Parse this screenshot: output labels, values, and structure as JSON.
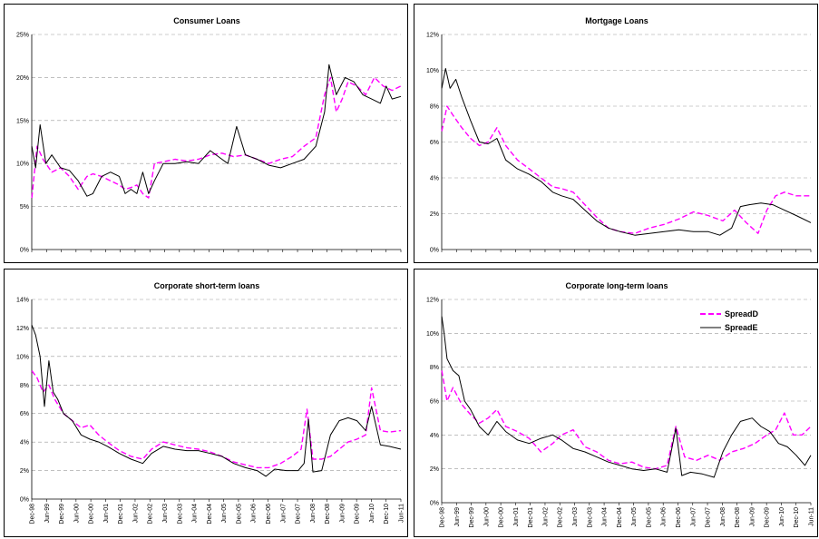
{
  "chart_data": [
    {
      "type": "line",
      "title": "Consumer Loans",
      "ylim": [
        0,
        0.25
      ],
      "yticks": [
        0,
        0.05,
        0.1,
        0.15,
        0.2,
        0.25
      ],
      "ytick_labels": [
        "0%",
        "5%",
        "10%",
        "15%",
        "20%",
        "25%"
      ],
      "x_range": [
        1998.917,
        2011.5
      ],
      "x_labels_visible": false,
      "grid": true,
      "series": [
        {
          "name": "SpreadD",
          "color": "#ff00ff",
          "dash": true,
          "x": [
            1998.92,
            1999.1,
            1999.3,
            1999.6,
            1999.9,
            2000.2,
            2000.5,
            2000.8,
            2001.0,
            2001.3,
            2001.6,
            2001.9,
            2002.1,
            2002.3,
            2002.5,
            2002.7,
            2002.9,
            2003.1,
            2003.4,
            2003.8,
            2004.2,
            2004.6,
            2005.0,
            2005.4,
            2005.8,
            2006.2,
            2006.6,
            2007.0,
            2007.4,
            2007.8,
            2008.2,
            2008.6,
            2008.9,
            2009.1,
            2009.3,
            2009.5,
            2009.7,
            2010.0,
            2010.3,
            2010.6,
            2010.9,
            2011.2,
            2011.5
          ],
          "y": [
            0.06,
            0.12,
            0.105,
            0.09,
            0.095,
            0.085,
            0.07,
            0.085,
            0.088,
            0.085,
            0.08,
            0.075,
            0.07,
            0.072,
            0.075,
            0.065,
            0.06,
            0.1,
            0.102,
            0.105,
            0.103,
            0.105,
            0.11,
            0.112,
            0.108,
            0.11,
            0.105,
            0.1,
            0.105,
            0.108,
            0.12,
            0.13,
            0.18,
            0.2,
            0.16,
            0.175,
            0.195,
            0.19,
            0.18,
            0.2,
            0.19,
            0.185,
            0.19
          ]
        },
        {
          "name": "SpreadE",
          "color": "#000000",
          "dash": false,
          "x": [
            1998.92,
            1999.05,
            1999.2,
            1999.4,
            1999.6,
            1999.9,
            2000.2,
            2000.5,
            2000.8,
            2001.0,
            2001.3,
            2001.6,
            2001.9,
            2002.1,
            2002.3,
            2002.5,
            2002.7,
            2002.9,
            2003.1,
            2003.4,
            2003.8,
            2004.2,
            2004.6,
            2005.0,
            2005.4,
            2005.6,
            2005.9,
            2006.2,
            2006.6,
            2007.0,
            2007.4,
            2007.8,
            2008.2,
            2008.6,
            2008.9,
            2009.05,
            2009.3,
            2009.6,
            2009.9,
            2010.2,
            2010.5,
            2010.8,
            2011.0,
            2011.2,
            2011.5
          ],
          "y": [
            0.12,
            0.095,
            0.145,
            0.1,
            0.11,
            0.095,
            0.092,
            0.08,
            0.062,
            0.065,
            0.085,
            0.09,
            0.085,
            0.065,
            0.07,
            0.065,
            0.09,
            0.065,
            0.08,
            0.1,
            0.1,
            0.102,
            0.1,
            0.115,
            0.105,
            0.1,
            0.143,
            0.11,
            0.105,
            0.098,
            0.095,
            0.1,
            0.105,
            0.12,
            0.16,
            0.215,
            0.18,
            0.2,
            0.195,
            0.18,
            0.175,
            0.17,
            0.19,
            0.175,
            0.178
          ]
        }
      ]
    },
    {
      "type": "line",
      "title": "Mortgage Loans",
      "ylim": [
        0,
        0.12
      ],
      "yticks": [
        0,
        0.02,
        0.04,
        0.06,
        0.08,
        0.1,
        0.12
      ],
      "ytick_labels": [
        "0%",
        "2%",
        "4%",
        "6%",
        "8%",
        "10%",
        "12%"
      ],
      "x_range": [
        1998.917,
        2011.5
      ],
      "x_labels_visible": false,
      "grid": true,
      "series": [
        {
          "name": "SpreadD",
          "color": "#ff00ff",
          "dash": true,
          "x": [
            1998.92,
            1999.1,
            1999.3,
            1999.6,
            1999.9,
            2000.2,
            2000.5,
            2000.8,
            2001.1,
            2001.5,
            2001.9,
            2002.3,
            2002.7,
            2003.0,
            2003.4,
            2003.8,
            2004.2,
            2004.6,
            2005.0,
            2005.5,
            2006.0,
            2006.5,
            2007.0,
            2007.5,
            2008.0,
            2008.5,
            2008.9,
            2009.3,
            2009.7,
            2010.0,
            2010.3,
            2010.6,
            2011.0,
            2011.5
          ],
          "y": [
            0.066,
            0.08,
            0.075,
            0.068,
            0.062,
            0.058,
            0.06,
            0.068,
            0.058,
            0.05,
            0.045,
            0.04,
            0.035,
            0.034,
            0.032,
            0.025,
            0.018,
            0.012,
            0.01,
            0.009,
            0.012,
            0.014,
            0.017,
            0.021,
            0.019,
            0.016,
            0.022,
            0.015,
            0.009,
            0.022,
            0.03,
            0.032,
            0.03,
            0.03
          ]
        },
        {
          "name": "SpreadE",
          "color": "#000000",
          "dash": false,
          "x": [
            1998.92,
            1999.05,
            1999.2,
            1999.4,
            1999.6,
            1999.9,
            2000.2,
            2000.5,
            2000.8,
            2001.1,
            2001.5,
            2001.9,
            2002.3,
            2002.7,
            2003.0,
            2003.4,
            2003.8,
            2004.2,
            2004.6,
            2005.0,
            2005.5,
            2006.0,
            2006.5,
            2007.0,
            2007.5,
            2008.0,
            2008.4,
            2008.8,
            2009.1,
            2009.4,
            2009.8,
            2010.2,
            2010.6,
            2011.0,
            2011.5
          ],
          "y": [
            0.09,
            0.101,
            0.09,
            0.095,
            0.085,
            0.072,
            0.06,
            0.059,
            0.062,
            0.05,
            0.045,
            0.042,
            0.038,
            0.032,
            0.03,
            0.028,
            0.022,
            0.016,
            0.012,
            0.01,
            0.008,
            0.009,
            0.01,
            0.011,
            0.01,
            0.01,
            0.008,
            0.012,
            0.024,
            0.025,
            0.026,
            0.025,
            0.022,
            0.019,
            0.015
          ]
        }
      ]
    },
    {
      "type": "line",
      "title": "Corporate short-term loans",
      "ylim": [
        0,
        0.14
      ],
      "yticks": [
        0,
        0.02,
        0.04,
        0.06,
        0.08,
        0.1,
        0.12,
        0.14
      ],
      "ytick_labels": [
        "0%",
        "2%",
        "4%",
        "6%",
        "8%",
        "10%",
        "12%",
        "14%"
      ],
      "x_range": [
        1998.917,
        2011.5
      ],
      "xticks": [
        "Dec-98",
        "Jun-99",
        "Dec-99",
        "Jun-00",
        "Dec-00",
        "Jun-01",
        "Dec-01",
        "Jun-02",
        "Dec-02",
        "Jun-03",
        "Dec-03",
        "Jun-04",
        "Dec-04",
        "Jun-05",
        "Dec-05",
        "Jun-06",
        "Dec-06",
        "Jun-07",
        "Dec-07",
        "Jun-08",
        "Dec-08",
        "Jun-09",
        "Dec-09",
        "Jun-10",
        "Dec-10",
        "Jun-11"
      ],
      "grid": true,
      "series": [
        {
          "name": "SpreadD",
          "color": "#ff00ff",
          "dash": true,
          "x": [
            1998.92,
            1999.1,
            1999.3,
            1999.5,
            1999.7,
            2000.0,
            2000.3,
            2000.6,
            2000.9,
            2001.2,
            2001.5,
            2001.9,
            2002.3,
            2002.7,
            2003.0,
            2003.4,
            2003.8,
            2004.2,
            2004.6,
            2005.0,
            2005.4,
            2005.8,
            2006.2,
            2006.6,
            2007.0,
            2007.4,
            2007.8,
            2008.1,
            2008.3,
            2008.5,
            2008.8,
            2009.1,
            2009.4,
            2009.7,
            2010.0,
            2010.3,
            2010.5,
            2010.8,
            2011.1,
            2011.5
          ],
          "y": [
            0.09,
            0.085,
            0.075,
            0.08,
            0.07,
            0.06,
            0.055,
            0.05,
            0.052,
            0.045,
            0.04,
            0.034,
            0.03,
            0.028,
            0.035,
            0.04,
            0.038,
            0.036,
            0.035,
            0.033,
            0.03,
            0.026,
            0.024,
            0.022,
            0.022,
            0.025,
            0.03,
            0.035,
            0.063,
            0.028,
            0.028,
            0.03,
            0.035,
            0.04,
            0.042,
            0.045,
            0.078,
            0.048,
            0.047,
            0.048
          ]
        },
        {
          "name": "SpreadE",
          "color": "#000000",
          "dash": false,
          "x": [
            1998.92,
            1999.05,
            1999.2,
            1999.35,
            1999.5,
            1999.65,
            1999.8,
            2000.0,
            2000.3,
            2000.6,
            2000.9,
            2001.2,
            2001.5,
            2001.9,
            2002.3,
            2002.7,
            2003.0,
            2003.4,
            2003.8,
            2004.2,
            2004.6,
            2005.0,
            2005.4,
            2005.8,
            2006.2,
            2006.6,
            2006.9,
            2007.2,
            2007.6,
            2008.0,
            2008.2,
            2008.35,
            2008.5,
            2008.8,
            2009.1,
            2009.4,
            2009.7,
            2010.0,
            2010.3,
            2010.5,
            2010.8,
            2011.1,
            2011.5
          ],
          "y": [
            0.122,
            0.115,
            0.1,
            0.065,
            0.097,
            0.075,
            0.07,
            0.06,
            0.055,
            0.045,
            0.042,
            0.04,
            0.037,
            0.032,
            0.028,
            0.025,
            0.032,
            0.037,
            0.035,
            0.034,
            0.034,
            0.032,
            0.03,
            0.025,
            0.022,
            0.02,
            0.016,
            0.021,
            0.02,
            0.02,
            0.025,
            0.056,
            0.019,
            0.02,
            0.045,
            0.055,
            0.057,
            0.055,
            0.048,
            0.065,
            0.038,
            0.037,
            0.035
          ]
        }
      ]
    },
    {
      "type": "line",
      "title": "Corporate long-term loans",
      "ylim": [
        0,
        0.12
      ],
      "yticks": [
        0,
        0.02,
        0.04,
        0.06,
        0.08,
        0.1,
        0.12
      ],
      "ytick_labels": [
        "0%",
        "2%",
        "4%",
        "6%",
        "8%",
        "10%",
        "12%"
      ],
      "x_range": [
        1998.917,
        2011.5
      ],
      "xticks": [
        "Dec-98",
        "Jun-99",
        "Dec-99",
        "Jun-00",
        "Dec-00",
        "Jun-01",
        "Dec-01",
        "Jun-02",
        "Dec-02",
        "Jun-03",
        "Dec-03",
        "Jun-04",
        "Dec-04",
        "Jun-05",
        "Dec-05",
        "Jun-06",
        "Dec-06",
        "Jun-07",
        "Dec-07",
        "Jun-08",
        "Dec-08",
        "Jun-09",
        "Dec-09",
        "Jun-10",
        "Dec-10",
        "Jun-11"
      ],
      "grid": true,
      "legend": "top-right",
      "series": [
        {
          "name": "SpreadD",
          "color": "#ff00ff",
          "dash": true,
          "x": [
            1998.92,
            1999.1,
            1999.3,
            1999.6,
            1999.9,
            2000.2,
            2000.5,
            2000.8,
            2001.1,
            2001.5,
            2001.9,
            2002.3,
            2002.7,
            2003.0,
            2003.4,
            2003.8,
            2004.2,
            2004.6,
            2005.0,
            2005.4,
            2005.8,
            2006.2,
            2006.6,
            2006.9,
            2007.2,
            2007.6,
            2008.0,
            2008.4,
            2008.8,
            2009.2,
            2009.6,
            2010.0,
            2010.3,
            2010.6,
            2010.9,
            2011.2,
            2011.5
          ],
          "y": [
            0.078,
            0.06,
            0.068,
            0.058,
            0.052,
            0.047,
            0.05,
            0.055,
            0.045,
            0.042,
            0.038,
            0.03,
            0.035,
            0.04,
            0.043,
            0.033,
            0.03,
            0.025,
            0.023,
            0.024,
            0.021,
            0.02,
            0.022,
            0.045,
            0.027,
            0.025,
            0.028,
            0.025,
            0.03,
            0.032,
            0.035,
            0.04,
            0.043,
            0.053,
            0.04,
            0.04,
            0.045
          ]
        },
        {
          "name": "SpreadE",
          "color": "#000000",
          "dash": false,
          "x": [
            1998.92,
            1999.0,
            1999.1,
            1999.3,
            1999.5,
            1999.7,
            1999.9,
            2000.2,
            2000.5,
            2000.8,
            2001.1,
            2001.5,
            2001.9,
            2002.3,
            2002.7,
            2003.0,
            2003.4,
            2003.8,
            2004.2,
            2004.6,
            2005.0,
            2005.4,
            2005.8,
            2006.2,
            2006.6,
            2006.9,
            2007.1,
            2007.4,
            2007.8,
            2008.2,
            2008.5,
            2008.8,
            2009.1,
            2009.5,
            2009.8,
            2010.1,
            2010.4,
            2010.7,
            2011.0,
            2011.3,
            2011.5
          ],
          "y": [
            0.11,
            0.1,
            0.085,
            0.078,
            0.075,
            0.06,
            0.055,
            0.045,
            0.04,
            0.048,
            0.042,
            0.037,
            0.035,
            0.038,
            0.04,
            0.037,
            0.032,
            0.03,
            0.027,
            0.024,
            0.022,
            0.02,
            0.019,
            0.02,
            0.018,
            0.044,
            0.016,
            0.018,
            0.017,
            0.015,
            0.03,
            0.04,
            0.048,
            0.05,
            0.045,
            0.042,
            0.035,
            0.033,
            0.028,
            0.022,
            0.028
          ]
        }
      ]
    }
  ],
  "legend": {
    "series_d": "SpreadD",
    "series_e": "SpreadE"
  }
}
